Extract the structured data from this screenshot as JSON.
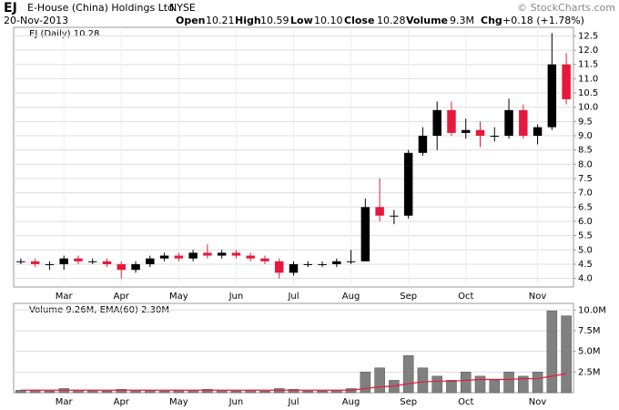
{
  "header": {
    "symbol": "EJ",
    "name": "E-House (China) Holdings Ltd.",
    "exchange": "NYSE",
    "date": "20-Nov-2013",
    "open_label": "Open",
    "open": "10.21",
    "high_label": "High",
    "high": "10.59",
    "low_label": "Low",
    "low": "10.10",
    "close_label": "Close",
    "close": "10.28",
    "volume_label": "Volume",
    "volume": "9.3M",
    "chg_label": "Chg",
    "chg": "+0.18 (+1.78%)",
    "copyright": "© StockCharts.com"
  },
  "chart_data": [
    {
      "type": "candlestick",
      "legend": "EJ (Daily) 10.28",
      "up_color": "#000000",
      "down_color": "#e8183c",
      "categories": [
        null,
        null,
        null,
        "Mar",
        null,
        null,
        null,
        "Apr",
        null,
        null,
        null,
        "May",
        null,
        null,
        null,
        "Jun",
        null,
        null,
        null,
        "Jul",
        null,
        null,
        null,
        "Aug",
        null,
        null,
        null,
        "Sep",
        null,
        null,
        null,
        "Oct",
        null,
        null,
        null,
        null,
        "Nov",
        null,
        null
      ],
      "open": [
        4.6,
        4.6,
        4.5,
        4.5,
        4.7,
        4.6,
        4.6,
        4.5,
        4.3,
        4.5,
        4.7,
        4.8,
        4.7,
        4.9,
        4.8,
        4.9,
        4.8,
        4.7,
        4.6,
        4.2,
        4.5,
        4.5,
        4.5,
        4.6,
        4.6,
        6.5,
        6.2,
        6.2,
        8.4,
        9.0,
        9.9,
        9.1,
        9.2,
        9.0,
        9.0,
        9.9,
        9.0,
        9.3,
        11.5
      ],
      "high": [
        4.7,
        4.7,
        4.6,
        4.8,
        4.8,
        4.7,
        4.7,
        4.6,
        4.6,
        4.8,
        4.9,
        4.9,
        5.0,
        5.2,
        5.0,
        5.0,
        4.9,
        4.8,
        4.7,
        4.6,
        4.6,
        4.6,
        4.7,
        5.0,
        6.8,
        7.5,
        6.4,
        8.5,
        9.3,
        10.2,
        10.2,
        9.6,
        9.5,
        9.3,
        10.3,
        10.1,
        9.4,
        12.6,
        11.9
      ],
      "low": [
        4.5,
        4.4,
        4.3,
        4.3,
        4.5,
        4.5,
        4.4,
        4.0,
        4.2,
        4.4,
        4.6,
        4.6,
        4.6,
        4.7,
        4.7,
        4.7,
        4.6,
        4.5,
        4.0,
        4.1,
        4.4,
        4.4,
        4.4,
        4.5,
        4.6,
        6.0,
        5.9,
        6.1,
        8.3,
        8.5,
        9.0,
        8.9,
        8.6,
        8.8,
        8.9,
        8.9,
        8.7,
        9.2,
        10.1
      ],
      "close": [
        4.6,
        4.5,
        4.5,
        4.7,
        4.6,
        4.6,
        4.5,
        4.3,
        4.5,
        4.7,
        4.8,
        4.7,
        4.9,
        4.8,
        4.9,
        4.8,
        4.7,
        4.6,
        4.2,
        4.5,
        4.5,
        4.5,
        4.6,
        4.6,
        6.5,
        6.2,
        6.2,
        8.4,
        9.0,
        9.9,
        9.1,
        9.2,
        9.0,
        9.0,
        9.9,
        9.0,
        9.3,
        11.5,
        10.28
      ],
      "ylim": [
        3.7,
        12.8
      ],
      "yticks": [
        {
          "value": 4,
          "label": "4.0"
        },
        4.5,
        {
          "value": 5,
          "label": "5.0"
        },
        5.5,
        {
          "value": 6,
          "label": "6.0"
        },
        6.5,
        {
          "value": 7,
          "label": "7.0"
        },
        7.5,
        {
          "value": 8,
          "label": "8.0"
        },
        8.5,
        {
          "value": 9,
          "label": "9.0"
        },
        9.5,
        {
          "value": 10,
          "label": "10.0"
        },
        10.5,
        {
          "value": 11,
          "label": "11.0"
        },
        11.5,
        {
          "value": 12,
          "label": "12.0"
        },
        12.5
      ],
      "grid": true
    },
    {
      "type": "volume",
      "legend": "Volume 9.26M, EMA(60) 2.30M",
      "series": [
        {
          "name": "Volume",
          "color": "#808080",
          "values": [
            0.3,
            0.3,
            0.2,
            0.5,
            0.3,
            0.3,
            0.2,
            0.4,
            0.3,
            0.3,
            0.2,
            0.3,
            0.3,
            0.4,
            0.3,
            0.2,
            0.3,
            0.2,
            0.5,
            0.4,
            0.2,
            0.2,
            0.3,
            0.5,
            2.5,
            3.0,
            1.5,
            4.5,
            3.0,
            2.0,
            1.5,
            2.5,
            2.0,
            1.5,
            2.5,
            2.0,
            2.5,
            9.9,
            9.3
          ]
        },
        {
          "name": "EMA(60)",
          "color": "#e8183c",
          "values": [
            0.3,
            0.3,
            0.3,
            0.3,
            0.3,
            0.3,
            0.3,
            0.3,
            0.3,
            0.3,
            0.3,
            0.3,
            0.3,
            0.3,
            0.3,
            0.3,
            0.3,
            0.3,
            0.3,
            0.3,
            0.3,
            0.3,
            0.3,
            0.3,
            0.5,
            0.7,
            0.8,
            1.1,
            1.3,
            1.4,
            1.4,
            1.5,
            1.6,
            1.6,
            1.6,
            1.7,
            1.7,
            2.0,
            2.3
          ]
        }
      ],
      "ylim": [
        0,
        10.8
      ],
      "yticks": [
        {
          "value": 2.5,
          "label": "2.5M"
        },
        {
          "value": 5,
          "label": "5.0M"
        },
        {
          "value": 7.5,
          "label": "7.5M"
        },
        {
          "value": 10,
          "label": "10.0M"
        }
      ],
      "grid": true
    }
  ]
}
